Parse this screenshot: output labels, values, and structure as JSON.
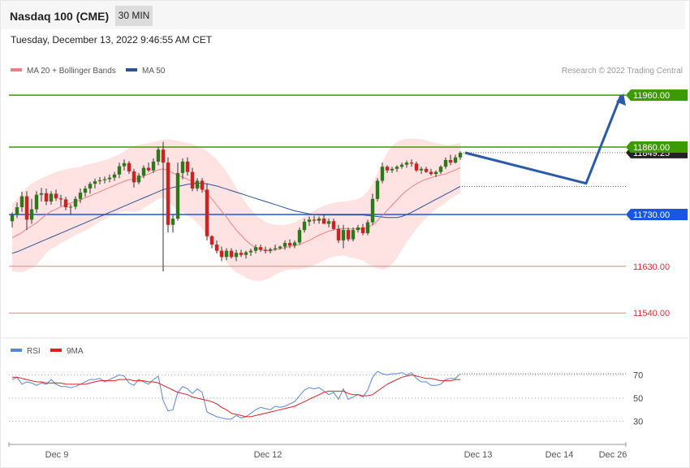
{
  "header": {
    "instrument": "Nasdaq 100 (CME)",
    "timeframe": "30 MIN"
  },
  "timestamp": "Tuesday, December 13, 2022 9:46:55 AM CET",
  "copyright": "Research © 2022 Trading Central",
  "colors": {
    "support": "#1a56e6",
    "resistance": "#3c9b00",
    "pivot_low": "#e03030",
    "ma50": "#2a5298",
    "ma20": "#f08080",
    "rsi": "#5a86d8",
    "rsi_ma": "#e02020",
    "up": "#2a7a1a",
    "down": "#d02020"
  },
  "chart_data": [
    {
      "type": "candlestick",
      "legend": [
        {
          "label": "MA 20 + Bollinger Bands",
          "color": "#f08080"
        },
        {
          "label": "MA 50",
          "color": "#2a5298"
        }
      ],
      "y_range": [
        11520,
        11990
      ],
      "levels": [
        {
          "value": 11960,
          "label": "11960.00",
          "kind": "resistance"
        },
        {
          "value": 11860,
          "label": "11860.00",
          "kind": "resistance"
        },
        {
          "value": 11730,
          "label": "11730.00",
          "kind": "support"
        },
        {
          "value": 11630,
          "label": "11630.00",
          "kind": "pivot"
        },
        {
          "value": 11540,
          "label": "11540.00",
          "kind": "pivot"
        }
      ],
      "last_price": {
        "value": 11849.25,
        "label": "11849.25"
      },
      "forecast": {
        "points": [
          11849,
          11790,
          11960
        ]
      },
      "candles": [
        [
          11717,
          11734,
          11705,
          11729
        ],
        [
          11729,
          11753,
          11723,
          11744
        ],
        [
          11744,
          11774,
          11735,
          11765
        ],
        [
          11765,
          11775,
          11700,
          11720
        ],
        [
          11720,
          11760,
          11712,
          11740
        ],
        [
          11740,
          11775,
          11733,
          11768
        ],
        [
          11768,
          11781,
          11755,
          11771
        ],
        [
          11771,
          11780,
          11748,
          11755
        ],
        [
          11755,
          11775,
          11749,
          11770
        ],
        [
          11770,
          11778,
          11756,
          11761
        ],
        [
          11761,
          11768,
          11746,
          11759
        ],
        [
          11759,
          11764,
          11738,
          11744
        ],
        [
          11744,
          11750,
          11730,
          11745
        ],
        [
          11745,
          11765,
          11740,
          11760
        ],
        [
          11760,
          11780,
          11752,
          11772
        ],
        [
          11772,
          11785,
          11764,
          11780
        ],
        [
          11780,
          11793,
          11770,
          11789
        ],
        [
          11789,
          11799,
          11780,
          11794
        ],
        [
          11794,
          11802,
          11788,
          11796
        ],
        [
          11796,
          11803,
          11790,
          11798
        ],
        [
          11798,
          11807,
          11792,
          11801
        ],
        [
          11801,
          11812,
          11795,
          11807
        ],
        [
          11807,
          11830,
          11800,
          11823
        ],
        [
          11823,
          11836,
          11815,
          11829
        ],
        [
          11829,
          11833,
          11808,
          11813
        ],
        [
          11813,
          11818,
          11782,
          11792
        ],
        [
          11792,
          11810,
          11788,
          11805
        ],
        [
          11805,
          11825,
          11800,
          11820
        ],
        [
          11820,
          11830,
          11812,
          11815
        ],
        [
          11815,
          11838,
          11810,
          11832
        ],
        [
          11832,
          11860,
          11825,
          11855
        ],
        [
          11855,
          11870,
          11620,
          11830
        ],
        [
          11830,
          11840,
          11695,
          11710
        ],
        [
          11710,
          11730,
          11695,
          11722
        ],
        [
          11722,
          11830,
          11718,
          11810
        ],
        [
          11810,
          11838,
          11798,
          11832
        ],
        [
          11832,
          11840,
          11805,
          11812
        ],
        [
          11812,
          11820,
          11775,
          11780
        ],
        [
          11780,
          11800,
          11775,
          11795
        ],
        [
          11795,
          11800,
          11772,
          11778
        ],
        [
          11778,
          11790,
          11680,
          11688
        ],
        [
          11688,
          11690,
          11665,
          11672
        ],
        [
          11672,
          11680,
          11655,
          11660
        ],
        [
          11660,
          11668,
          11640,
          11648
        ],
        [
          11648,
          11665,
          11642,
          11660
        ],
        [
          11660,
          11665,
          11645,
          11648
        ],
        [
          11648,
          11662,
          11640,
          11656
        ],
        [
          11656,
          11662,
          11648,
          11652
        ],
        [
          11652,
          11660,
          11645,
          11657
        ],
        [
          11657,
          11664,
          11650,
          11660
        ],
        [
          11660,
          11672,
          11655,
          11667
        ],
        [
          11667,
          11672,
          11658,
          11662
        ],
        [
          11662,
          11668,
          11655,
          11660
        ],
        [
          11660,
          11666,
          11655,
          11663
        ],
        [
          11663,
          11672,
          11660,
          11665
        ],
        [
          11665,
          11670,
          11662,
          11668
        ],
        [
          11668,
          11680,
          11662,
          11675
        ],
        [
          11675,
          11682,
          11665,
          11670
        ],
        [
          11670,
          11680,
          11665,
          11676
        ],
        [
          11676,
          11705,
          11672,
          11700
        ],
        [
          11700,
          11722,
          11695,
          11716
        ],
        [
          11716,
          11726,
          11708,
          11720
        ],
        [
          11720,
          11728,
          11712,
          11718
        ],
        [
          11718,
          11726,
          11712,
          11722
        ],
        [
          11722,
          11730,
          11715,
          11712
        ],
        [
          11712,
          11722,
          11705,
          11717
        ],
        [
          11717,
          11722,
          11700,
          11702
        ],
        [
          11702,
          11710,
          11675,
          11680
        ],
        [
          11680,
          11710,
          11665,
          11700
        ],
        [
          11700,
          11705,
          11678,
          11682
        ],
        [
          11682,
          11705,
          11678,
          11700
        ],
        [
          11700,
          11710,
          11695,
          11705
        ],
        [
          11705,
          11712,
          11690,
          11694
        ],
        [
          11694,
          11720,
          11690,
          11715
        ],
        [
          11715,
          11770,
          11710,
          11760
        ],
        [
          11760,
          11800,
          11755,
          11795
        ],
        [
          11795,
          11830,
          11790,
          11822
        ],
        [
          11822,
          11825,
          11810,
          11815
        ],
        [
          11815,
          11822,
          11810,
          11818
        ],
        [
          11818,
          11825,
          11812,
          11822
        ],
        [
          11822,
          11830,
          11818,
          11826
        ],
        [
          11826,
          11834,
          11820,
          11830
        ],
        [
          11830,
          11836,
          11822,
          11828
        ],
        [
          11828,
          11832,
          11812,
          11815
        ],
        [
          11815,
          11822,
          11808,
          11818
        ],
        [
          11818,
          11822,
          11810,
          11812
        ],
        [
          11812,
          11818,
          11805,
          11808
        ],
        [
          11808,
          11815,
          11802,
          11812
        ],
        [
          11812,
          11825,
          11808,
          11822
        ],
        [
          11822,
          11840,
          11818,
          11835
        ],
        [
          11835,
          11845,
          11825,
          11830
        ],
        [
          11830,
          11845,
          11828,
          11840
        ],
        [
          11840,
          11852,
          11835,
          11849
        ]
      ],
      "ma20": [
        11685,
        11690,
        11695,
        11702,
        11708,
        11714,
        11722,
        11730,
        11736,
        11740,
        11745,
        11748,
        11752,
        11755,
        11758,
        11762,
        11766,
        11770,
        11774,
        11778,
        11782,
        11786,
        11790,
        11794,
        11797,
        11798,
        11800,
        11804,
        11808,
        11812,
        11816,
        11818,
        11815,
        11810,
        11806,
        11802,
        11798,
        11794,
        11788,
        11780,
        11770,
        11760,
        11748,
        11736,
        11725,
        11712,
        11700,
        11690,
        11680,
        11672,
        11666,
        11662,
        11660,
        11660,
        11662,
        11664,
        11666,
        11668,
        11670,
        11672,
        11676,
        11680,
        11685,
        11690,
        11694,
        11698,
        11700,
        11702,
        11703,
        11702,
        11702,
        11702,
        11703,
        11705,
        11710,
        11718,
        11728,
        11738,
        11748,
        11758,
        11768,
        11776,
        11783,
        11789,
        11794,
        11798,
        11801,
        11804,
        11806,
        11808,
        11812,
        11816,
        11820
      ],
      "ma50": [
        11655,
        11658,
        11662,
        11666,
        11670,
        11674,
        11678,
        11682,
        11686,
        11690,
        11694,
        11698,
        11702,
        11706,
        11710,
        11714,
        11718,
        11722,
        11726,
        11730,
        11734,
        11738,
        11742,
        11746,
        11750,
        11754,
        11758,
        11762,
        11766,
        11770,
        11774,
        11778,
        11780,
        11782,
        11784,
        11786,
        11788,
        11789,
        11790,
        11790,
        11789,
        11787,
        11785,
        11782,
        11779,
        11776,
        11773,
        11770,
        11767,
        11764,
        11761,
        11758,
        11755,
        11752,
        11749,
        11746,
        11743,
        11740,
        11737,
        11735,
        11733,
        11731,
        11730,
        11729,
        11729,
        11729,
        11729,
        11729,
        11729,
        11729,
        11729,
        11729,
        11729,
        11728,
        11727,
        11726,
        11725,
        11724,
        11724,
        11724,
        11726,
        11730,
        11734,
        11739,
        11744,
        11749,
        11754,
        11759,
        11764,
        11769,
        11774,
        11779,
        11784
      ],
      "bb_upper": [
        11750,
        11760,
        11772,
        11782,
        11790,
        11795,
        11800,
        11804,
        11808,
        11812,
        11815,
        11817,
        11819,
        11820,
        11822,
        11825,
        11828,
        11830,
        11832,
        11835,
        11838,
        11842,
        11846,
        11852,
        11858,
        11862,
        11864,
        11866,
        11868,
        11870,
        11872,
        11874,
        11875,
        11874,
        11872,
        11870,
        11868,
        11866,
        11862,
        11858,
        11852,
        11845,
        11836,
        11825,
        11812,
        11798,
        11782,
        11766,
        11752,
        11740,
        11730,
        11722,
        11716,
        11712,
        11710,
        11710,
        11710,
        11712,
        11715,
        11720,
        11726,
        11732,
        11738,
        11743,
        11747,
        11750,
        11752,
        11754,
        11755,
        11756,
        11758,
        11760,
        11765,
        11775,
        11790,
        11810,
        11832,
        11850,
        11862,
        11870,
        11874,
        11876,
        11876,
        11876,
        11875,
        11873,
        11870,
        11868,
        11866,
        11864,
        11864,
        11866,
        11868
      ],
      "bb_lower": [
        11620,
        11620,
        11618,
        11622,
        11626,
        11633,
        11644,
        11656,
        11664,
        11668,
        11675,
        11679,
        11685,
        11690,
        11694,
        11699,
        11704,
        11710,
        11716,
        11721,
        11726,
        11730,
        11734,
        11736,
        11736,
        11734,
        11736,
        11742,
        11748,
        11754,
        11760,
        11762,
        11755,
        11746,
        11740,
        11734,
        11728,
        11722,
        11714,
        11702,
        11688,
        11675,
        11660,
        11647,
        11638,
        11626,
        11618,
        11614,
        11608,
        11604,
        11602,
        11602,
        11604,
        11608,
        11614,
        11618,
        11622,
        11624,
        11625,
        11624,
        11626,
        11628,
        11632,
        11637,
        11641,
        11646,
        11648,
        11650,
        11651,
        11648,
        11646,
        11644,
        11641,
        11635,
        11630,
        11626,
        11624,
        11626,
        11634,
        11646,
        11662,
        11676,
        11690,
        11702,
        11713,
        11723,
        11732,
        11740,
        11746,
        11752,
        11760,
        11766,
        11772
      ]
    },
    {
      "type": "line",
      "legend": [
        {
          "label": "RSI",
          "color": "#5a86d8"
        },
        {
          "label": "9MA",
          "color": "#e02020"
        }
      ],
      "y_ticks": [
        70,
        50,
        30
      ],
      "y_range": [
        15,
        85
      ],
      "x_labels": [
        "Dec 9",
        "Dec 12",
        "Dec 13",
        "Dec 14",
        "Dec 26"
      ],
      "rsi": [
        66,
        68,
        62,
        64,
        63,
        61,
        63,
        62,
        66,
        62,
        60,
        60,
        59,
        60,
        62,
        64,
        66,
        66,
        67,
        64,
        66,
        68,
        70,
        69,
        63,
        61,
        66,
        64,
        62,
        66,
        69,
        48,
        39,
        40,
        55,
        60,
        58,
        54,
        58,
        55,
        38,
        36,
        34,
        33,
        32,
        32,
        35,
        33,
        34,
        37,
        40,
        42,
        41,
        40,
        43,
        42,
        43,
        45,
        47,
        52,
        57,
        59,
        58,
        59,
        56,
        53,
        55,
        49,
        58,
        49,
        51,
        53,
        51,
        57,
        68,
        73,
        71,
        70,
        71,
        71,
        72,
        70,
        72,
        67,
        64,
        64,
        61,
        61,
        62,
        66,
        67,
        67,
        71
      ],
      "rsi_ma": [
        68,
        68,
        67,
        66,
        65,
        64,
        64,
        63,
        63,
        63,
        63,
        62,
        62,
        62,
        62,
        62,
        63,
        64,
        65,
        65,
        65,
        65,
        66,
        66,
        66,
        65,
        65,
        65,
        64,
        64,
        63,
        61,
        59,
        57,
        55,
        54,
        53,
        51,
        50,
        49,
        48,
        47,
        45,
        42,
        40,
        37,
        36,
        35,
        34,
        34,
        35,
        36,
        37,
        38,
        39,
        40,
        41,
        42,
        43,
        45,
        47,
        49,
        51,
        53,
        55,
        56,
        56,
        56,
        56,
        54,
        53,
        53,
        52,
        52,
        53,
        56,
        59,
        62,
        64,
        66,
        68,
        69,
        70,
        69,
        68,
        67,
        67,
        66,
        65,
        65,
        65,
        66,
        66
      ]
    }
  ]
}
